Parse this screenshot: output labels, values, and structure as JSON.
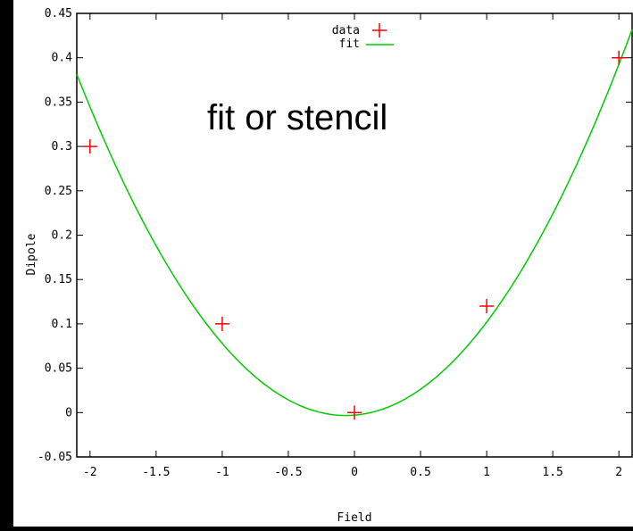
{
  "overlay": {
    "text": "fit or stencil"
  },
  "chart_data": {
    "type": "scatter",
    "title": "",
    "xlabel": "Field",
    "ylabel": "Dipole",
    "xlim": [
      -2.1,
      2.1
    ],
    "ylim": [
      -0.05,
      0.45
    ],
    "xticks": [
      -2,
      -1.5,
      -1,
      -0.5,
      0,
      0.5,
      1,
      1.5,
      2
    ],
    "xtick_labels": [
      "-2",
      "-1.5",
      "-1",
      "-0.5",
      "0",
      "0.5",
      "1",
      "1.5",
      "2"
    ],
    "yticks": [
      -0.05,
      0,
      0.05,
      0.1,
      0.15,
      0.2,
      0.25,
      0.3,
      0.35,
      0.4,
      0.45
    ],
    "ytick_labels": [
      "-0.05",
      "0",
      "0.05",
      "0.1",
      "0.15",
      "0.2",
      "0.25",
      "0.3",
      "0.35",
      "0.4",
      "0.45"
    ],
    "grid": false,
    "legend_position": "top-center",
    "series": [
      {
        "name": "data",
        "style": "points",
        "marker": "plus",
        "color": "#ff0000",
        "x": [
          -2,
          -1,
          0,
          1,
          2
        ],
        "y": [
          0.3,
          0.1,
          0,
          0.12,
          0.4
        ]
      },
      {
        "name": "fit",
        "style": "line",
        "color": "#00cc00",
        "fit": {
          "a": 0.09286,
          "b": 0.012,
          "c": -0.0029
        }
      }
    ]
  }
}
